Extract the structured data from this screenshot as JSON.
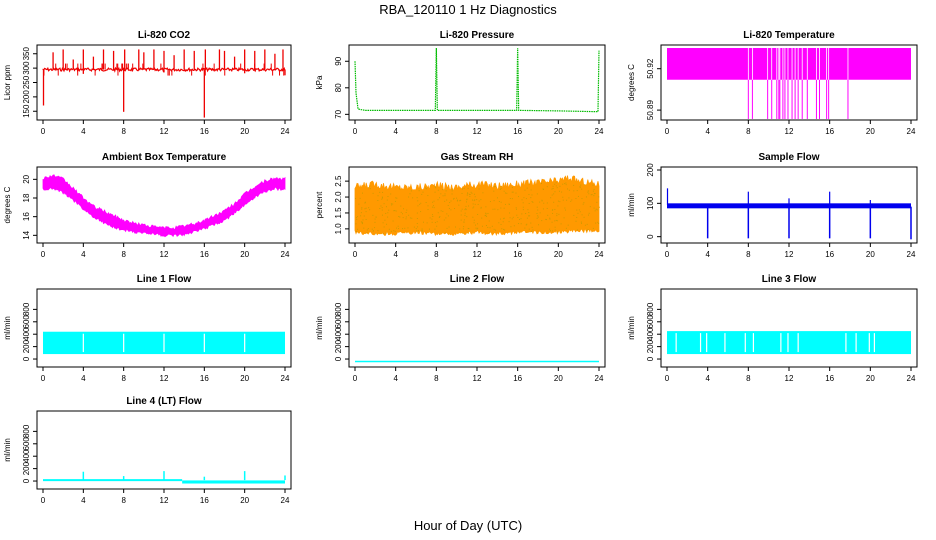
{
  "page": {
    "title": "RBA_120110  1 Hz Diagnostics",
    "xlabel": "Hour of Day (UTC)"
  },
  "colors": {
    "co2": "#ee0000",
    "pressure": "#00bb00",
    "temperature": "#ff00ff",
    "ambient": "#ff00ff",
    "rh_fill": "#ff9900",
    "rh_dots": "#cc9900",
    "sample_flow": "#0000ee",
    "line_flow": "#00ffff"
  },
  "chart_data": [
    {
      "id": "co2",
      "type": "line",
      "title": "Li-820 CO2",
      "ylabel": "Licor ppm",
      "xlim": [
        0,
        24
      ],
      "ylim": [
        130,
        370
      ],
      "xticks": [
        0,
        4,
        8,
        12,
        16,
        20,
        24
      ],
      "xtick_labels": [
        "0",
        "4",
        "8",
        "12",
        "16",
        "20",
        "24"
      ],
      "yticks": [
        150,
        200,
        250,
        300,
        350
      ],
      "ytick_labels": [
        "150",
        "200",
        "250",
        "300",
        "350"
      ],
      "baseline": 295,
      "spikes_up": [
        [
          1.0,
          355
        ],
        [
          2.0,
          365
        ],
        [
          3.0,
          330
        ],
        [
          4.0,
          365
        ],
        [
          5.0,
          340
        ],
        [
          6.0,
          365
        ],
        [
          7.0,
          360
        ],
        [
          8.1,
          365
        ],
        [
          9.5,
          365
        ],
        [
          10.0,
          355
        ],
        [
          11.0,
          365
        ],
        [
          12.0,
          360
        ],
        [
          13.0,
          345
        ],
        [
          14.0,
          365
        ],
        [
          15.0,
          360
        ],
        [
          16.1,
          365
        ],
        [
          17.5,
          365
        ],
        [
          18.0,
          360
        ],
        [
          19.0,
          340
        ],
        [
          20.0,
          365
        ],
        [
          21.0,
          360
        ],
        [
          22.0,
          365
        ],
        [
          23.0,
          350
        ],
        [
          23.8,
          365
        ]
      ],
      "spikes_down": [
        [
          0.05,
          170
        ],
        [
          8.0,
          148
        ],
        [
          16.0,
          128
        ],
        [
          4.0,
          280
        ],
        [
          12.0,
          285
        ],
        [
          20.0,
          282
        ],
        [
          24.0,
          275
        ]
      ]
    },
    {
      "id": "pressure",
      "type": "line",
      "title": "Li-820 Pressure",
      "ylabel": "kPa",
      "xlim": [
        0,
        24
      ],
      "ylim": [
        69,
        95
      ],
      "xticks": [
        0,
        4,
        8,
        12,
        16,
        20,
        24
      ],
      "xtick_labels": [
        "0",
        "4",
        "8",
        "12",
        "16",
        "20",
        "24"
      ],
      "yticks": [
        70,
        80,
        90
      ],
      "ytick_labels": [
        "70",
        "80",
        "90"
      ],
      "series": [
        [
          0,
          90
        ],
        [
          0.1,
          78
        ],
        [
          0.3,
          72
        ],
        [
          1,
          71.5
        ],
        [
          4,
          71.5
        ],
        [
          7.9,
          71.5
        ],
        [
          8,
          95
        ],
        [
          8.1,
          71.5
        ],
        [
          12,
          71.5
        ],
        [
          15.9,
          71.5
        ],
        [
          16,
          95
        ],
        [
          16.1,
          71.5
        ],
        [
          20,
          71.3
        ],
        [
          23.9,
          71.0
        ],
        [
          24,
          94
        ]
      ]
    },
    {
      "id": "licor-temp",
      "type": "line",
      "title": "Li-820 Temperature",
      "ylabel": "degrees C",
      "xlim": [
        0,
        24
      ],
      "ylim": [
        50.885,
        50.935
      ],
      "xticks": [
        0,
        4,
        8,
        12,
        16,
        20,
        24
      ],
      "xtick_labels": [
        "0",
        "4",
        "8",
        "12",
        "16",
        "20",
        "24"
      ],
      "yticks": [
        50.89,
        50.92
      ],
      "ytick_labels": [
        "50.89",
        "50.92"
      ],
      "band": [
        50.912,
        50.935
      ],
      "drops": [
        8.0,
        8.4,
        9.9,
        10.3,
        10.8,
        11.0,
        11.1,
        11.4,
        11.6,
        11.9,
        12.3,
        12.6,
        12.9,
        13.3,
        13.8,
        14.7,
        15.0,
        15.7,
        15.9,
        17.8
      ]
    },
    {
      "id": "ambient",
      "type": "area",
      "title": "Ambient Box Temperature",
      "ylabel": "degrees C",
      "xlim": [
        0,
        24
      ],
      "ylim": [
        13.5,
        21
      ],
      "xticks": [
        0,
        4,
        8,
        12,
        16,
        20,
        24
      ],
      "xtick_labels": [
        "0",
        "4",
        "8",
        "12",
        "16",
        "20",
        "24"
      ],
      "yticks": [
        14,
        16,
        18,
        20
      ],
      "ytick_labels": [
        "14",
        "16",
        "18",
        "20"
      ],
      "upper": [
        [
          0,
          20.1
        ],
        [
          1,
          20.4
        ],
        [
          2,
          20.0
        ],
        [
          3,
          19.0
        ],
        [
          4,
          18.0
        ],
        [
          5,
          17.1
        ],
        [
          6,
          16.6
        ],
        [
          7,
          16.1
        ],
        [
          8,
          15.6
        ],
        [
          9,
          15.3
        ],
        [
          10,
          15.1
        ],
        [
          11,
          14.9
        ],
        [
          12,
          14.8
        ],
        [
          13,
          14.8
        ],
        [
          14,
          15.0
        ],
        [
          15,
          15.2
        ],
        [
          16,
          15.6
        ],
        [
          17,
          16.1
        ],
        [
          18,
          16.6
        ],
        [
          19,
          17.4
        ],
        [
          20,
          18.4
        ],
        [
          21,
          19.2
        ],
        [
          22,
          19.8
        ],
        [
          23,
          20.1
        ],
        [
          24,
          20.0
        ]
      ],
      "lower": [
        [
          0,
          18.9
        ],
        [
          1,
          19.0
        ],
        [
          2,
          18.6
        ],
        [
          3,
          17.8
        ],
        [
          4,
          16.8
        ],
        [
          5,
          16.0
        ],
        [
          6,
          15.4
        ],
        [
          7,
          14.9
        ],
        [
          8,
          14.6
        ],
        [
          9,
          14.4
        ],
        [
          10,
          14.3
        ],
        [
          11,
          14.2
        ],
        [
          12,
          14.0
        ],
        [
          13,
          14.0
        ],
        [
          14,
          14.1
        ],
        [
          15,
          14.4
        ],
        [
          16,
          14.7
        ],
        [
          17,
          15.2
        ],
        [
          18,
          15.6
        ],
        [
          19,
          16.4
        ],
        [
          20,
          17.3
        ],
        [
          21,
          18.1
        ],
        [
          22,
          18.7
        ],
        [
          23,
          19.0
        ],
        [
          24,
          18.9
        ]
      ]
    },
    {
      "id": "rh",
      "type": "area",
      "title": "Gas Stream RH",
      "ylabel": "percent",
      "xlim": [
        0,
        24
      ],
      "ylim": [
        0.65,
        2.85
      ],
      "xticks": [
        0,
        4,
        8,
        12,
        16,
        20,
        24
      ],
      "xtick_labels": [
        "0",
        "4",
        "8",
        "12",
        "16",
        "20",
        "24"
      ],
      "yticks": [
        1.0,
        1.5,
        2.0,
        2.5
      ],
      "ytick_labels": [
        "1.0",
        "1.5",
        "2.0",
        "2.5"
      ],
      "upper": [
        [
          0,
          2.3
        ],
        [
          2,
          2.4
        ],
        [
          4,
          2.3
        ],
        [
          6,
          2.3
        ],
        [
          8,
          2.35
        ],
        [
          10,
          2.3
        ],
        [
          12,
          2.4
        ],
        [
          14,
          2.35
        ],
        [
          16,
          2.4
        ],
        [
          18,
          2.45
        ],
        [
          20,
          2.5
        ],
        [
          21,
          2.6
        ],
        [
          22,
          2.5
        ],
        [
          24,
          2.4
        ]
      ],
      "lower": [
        [
          0,
          0.9
        ],
        [
          2,
          0.85
        ],
        [
          4,
          0.85
        ],
        [
          6,
          0.9
        ],
        [
          8,
          0.85
        ],
        [
          10,
          0.85
        ],
        [
          12,
          0.9
        ],
        [
          14,
          0.85
        ],
        [
          16,
          0.9
        ],
        [
          18,
          0.9
        ],
        [
          20,
          0.9
        ],
        [
          22,
          0.95
        ],
        [
          24,
          0.95
        ]
      ]
    },
    {
      "id": "sample-flow",
      "type": "line",
      "title": "Sample Flow",
      "ylabel": "ml/min",
      "xlim": [
        0,
        24
      ],
      "ylim": [
        -10,
        200
      ],
      "xticks": [
        0,
        4,
        8,
        12,
        16,
        20,
        24
      ],
      "xtick_labels": [
        "0",
        "4",
        "8",
        "12",
        "16",
        "20",
        "24"
      ],
      "yticks": [
        0,
        100,
        200
      ],
      "ytick_labels": [
        "0",
        "100",
        "200"
      ],
      "band": [
        85,
        100
      ],
      "spikes": [
        [
          0.05,
          145
        ],
        [
          8.0,
          135
        ],
        [
          16.0,
          135
        ],
        [
          12.0,
          115
        ],
        [
          20.0,
          110
        ]
      ],
      "drops": [
        [
          4.0,
          -5
        ],
        [
          8.0,
          -5
        ],
        [
          12.0,
          -5
        ],
        [
          16.0,
          -5
        ],
        [
          20.0,
          -5
        ],
        [
          24.0,
          -8
        ]
      ]
    },
    {
      "id": "line1",
      "type": "area",
      "title": "Line 1 Flow",
      "ylabel": "ml/min",
      "xlim": [
        0,
        24
      ],
      "ylim": [
        -80,
        1080
      ],
      "xticks": [
        0,
        4,
        8,
        12,
        16,
        20,
        24
      ],
      "xtick_labels": [
        "0",
        "4",
        "8",
        "12",
        "16",
        "20",
        "24"
      ],
      "yticks": [
        0,
        200,
        400,
        600,
        800
      ],
      "ytick_labels": [
        "0",
        "200",
        "400",
        "600",
        "800"
      ],
      "band": [
        80,
        440
      ],
      "gaps": [
        4.0,
        8.0,
        12.0,
        16.0,
        20.0
      ]
    },
    {
      "id": "line2",
      "type": "line",
      "title": "Line 2 Flow",
      "ylabel": "ml/min",
      "xlim": [
        0,
        24
      ],
      "ylim": [
        -80,
        1080
      ],
      "xticks": [
        0,
        4,
        8,
        12,
        16,
        20,
        24
      ],
      "xtick_labels": [
        "0",
        "4",
        "8",
        "12",
        "16",
        "20",
        "24"
      ],
      "yticks": [
        0,
        200,
        400,
        600,
        800
      ],
      "ytick_labels": [
        "0",
        "200",
        "400",
        "600",
        "800"
      ],
      "value": -40
    },
    {
      "id": "line3",
      "type": "area",
      "title": "Line 3 Flow",
      "ylabel": "ml/min",
      "xlim": [
        0,
        24
      ],
      "ylim": [
        -80,
        1080
      ],
      "xticks": [
        0,
        4,
        8,
        12,
        16,
        20,
        24
      ],
      "xtick_labels": [
        "0",
        "4",
        "8",
        "12",
        "16",
        "20",
        "24"
      ],
      "yticks": [
        0,
        200,
        400,
        600,
        800
      ],
      "ytick_labels": [
        "0",
        "200",
        "400",
        "600",
        "800"
      ],
      "band": [
        80,
        450
      ],
      "gaps": [
        0.9,
        3.3,
        3.9,
        5.7,
        7.7,
        8.5,
        11.2,
        11.9,
        12.9,
        17.6,
        18.6,
        19.9,
        20.4
      ]
    },
    {
      "id": "line4",
      "type": "line",
      "title": "Line 4 (LT) Flow",
      "ylabel": "ml/min",
      "xlim": [
        0,
        24
      ],
      "ylim": [
        -80,
        1080
      ],
      "xticks": [
        0,
        4,
        8,
        12,
        16,
        20,
        24
      ],
      "xtick_labels": [
        "0",
        "4",
        "8",
        "12",
        "16",
        "20",
        "24"
      ],
      "yticks": [
        0,
        200,
        400,
        600,
        800
      ],
      "ytick_labels": [
        "0",
        "200",
        "400",
        "600",
        "800"
      ],
      "baseline": 15,
      "noisy_band": [
        13.8,
        24,
        -40,
        10
      ],
      "spikes": [
        [
          4.0,
          150
        ],
        [
          8.0,
          80
        ],
        [
          12.0,
          160
        ],
        [
          16.0,
          70
        ],
        [
          20.0,
          160
        ],
        [
          24.0,
          90
        ]
      ]
    }
  ]
}
